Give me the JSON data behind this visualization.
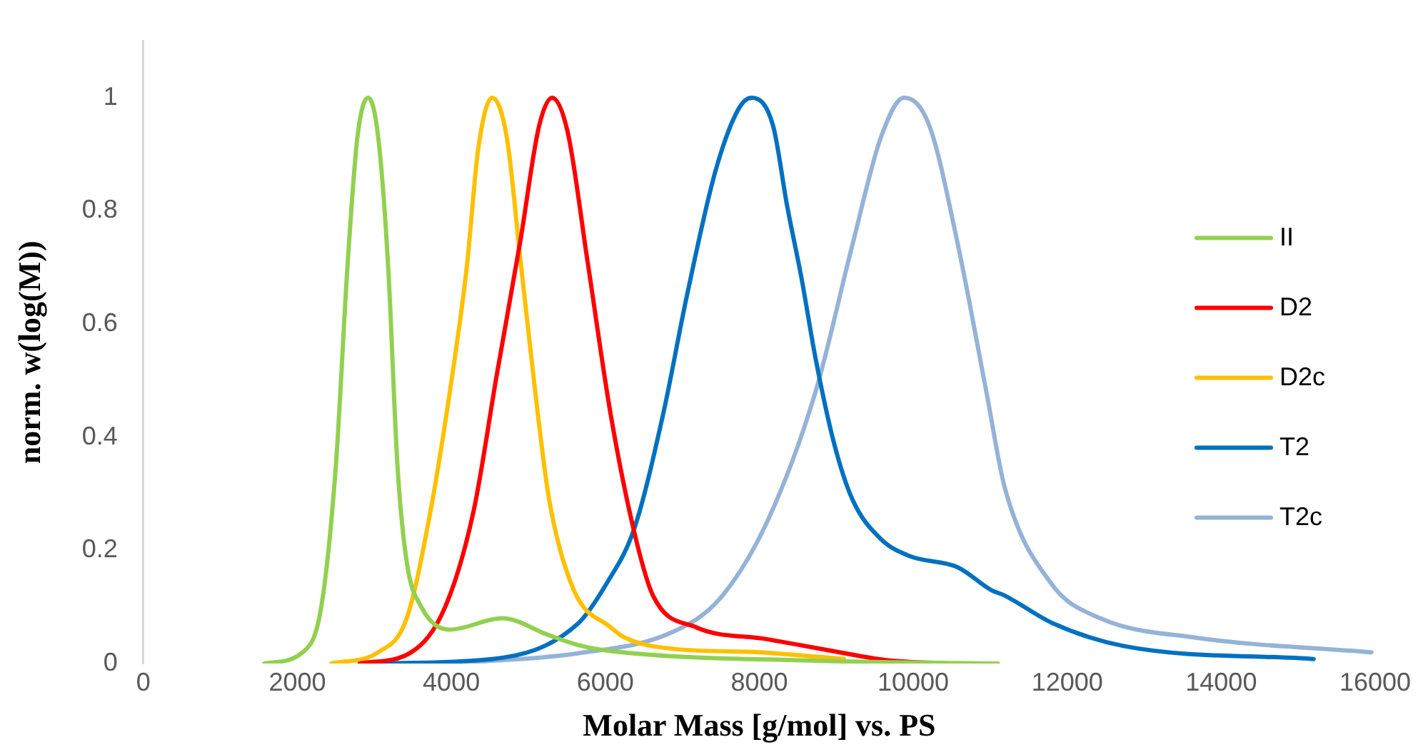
{
  "chart_data": {
    "type": "line",
    "xlabel": "Molar Mass [g/mol] vs. PS",
    "ylabel": "norm. w(log(M))",
    "xlim": [
      0,
      16000
    ],
    "xticks": [
      0,
      2000,
      4000,
      6000,
      8000,
      10000,
      12000,
      14000,
      16000
    ],
    "ylim": [
      0,
      1.1
    ],
    "yticks": [
      0,
      0.2,
      0.4,
      0.6,
      0.8,
      1
    ],
    "grid": false,
    "legend": "right",
    "marker": "none",
    "line_style": "solid",
    "series": [
      {
        "name": "II",
        "color": "#92d050",
        "x": [
          1570,
          2070,
          2310,
          2500,
          2650,
          2780,
          2920,
          3050,
          3180,
          3300,
          3420,
          3610,
          3980,
          4660,
          5270,
          5640,
          6070,
          8730,
          11100
        ],
        "values": [
          0,
          0.02,
          0.1,
          0.35,
          0.7,
          0.93,
          1,
          0.93,
          0.7,
          0.35,
          0.18,
          0.1,
          0.06,
          0.08,
          0.05,
          0.033,
          0.022,
          0.005,
          0
        ]
      },
      {
        "name": "D2",
        "color": "#ff0000",
        "x": [
          2810,
          3480,
          3920,
          4290,
          4590,
          4900,
          5140,
          5310,
          5510,
          5770,
          6070,
          6380,
          6620,
          7180,
          8100,
          8840,
          9650,
          10450
        ],
        "values": [
          0,
          0.02,
          0.1,
          0.27,
          0.51,
          0.75,
          0.95,
          1,
          0.94,
          0.71,
          0.44,
          0.23,
          0.12,
          0.064,
          0.043,
          0.025,
          0.006,
          0
        ]
      },
      {
        "name": "D2c",
        "color": "#ffc000",
        "x": [
          2440,
          3050,
          3420,
          3730,
          3980,
          4200,
          4350,
          4530,
          4720,
          4900,
          5090,
          5270,
          5590,
          6070,
          6250,
          6880,
          7990,
          9100
        ],
        "values": [
          0,
          0.02,
          0.08,
          0.27,
          0.48,
          0.7,
          0.91,
          1,
          0.93,
          0.71,
          0.48,
          0.29,
          0.13,
          0.064,
          0.046,
          0.026,
          0.02,
          0.008
        ]
      },
      {
        "name": "T2",
        "color": "#0070c0",
        "x": [
          2810,
          4530,
          5640,
          6010,
          6380,
          6750,
          7060,
          7430,
          7730,
          7900,
          8180,
          8360,
          8550,
          8730,
          8970,
          9210,
          9580,
          9950,
          10580,
          11010,
          11190,
          11800,
          12730,
          15200
        ],
        "values": [
          0,
          0.008,
          0.07,
          0.14,
          0.24,
          0.44,
          0.65,
          0.87,
          0.98,
          1,
          0.95,
          0.81,
          0.68,
          0.54,
          0.39,
          0.29,
          0.22,
          0.19,
          0.17,
          0.13,
          0.12,
          0.072,
          0.031,
          0.008
        ]
      },
      {
        "name": "T2c",
        "color": "#95b3d7",
        "x": [
          3920,
          5640,
          6880,
          7490,
          8100,
          8730,
          9210,
          9580,
          9880,
          10210,
          10580,
          10950,
          11190,
          11800,
          12430,
          13650,
          15950
        ],
        "values": [
          0,
          0.018,
          0.056,
          0.115,
          0.25,
          0.48,
          0.74,
          0.93,
          1,
          0.95,
          0.74,
          0.48,
          0.31,
          0.14,
          0.08,
          0.046,
          0.02
        ]
      }
    ]
  }
}
